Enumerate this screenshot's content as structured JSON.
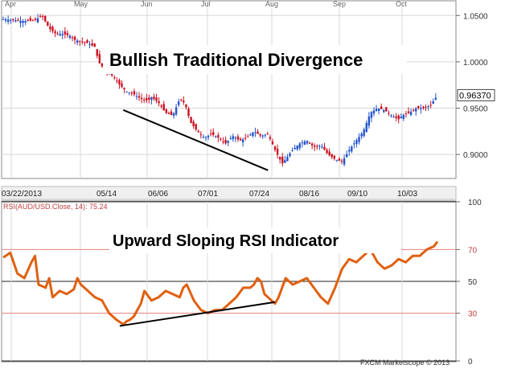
{
  "chart_data": [
    {
      "type": "candlestick",
      "annotation": "Bullish Traditional Divergence",
      "ylim": [
        0.875,
        1.065
      ],
      "yticks": [
        1.05,
        1.0,
        0.95,
        0.9
      ],
      "ytick_labels": [
        "1.0500",
        "1.0000",
        "0.9500",
        "0.9000"
      ],
      "month_labels": [
        "Apr",
        "May",
        "Jun",
        "Jul",
        "Aug",
        "Sep",
        "Oct"
      ],
      "date_labels": [
        "03/22/2013",
        "05/14",
        "06/06",
        "07/01",
        "07/24",
        "08/16",
        "09/10",
        "10/03"
      ],
      "last_price": "0.96370",
      "close_path": [
        [
          0,
          1.046
        ],
        [
          6,
          1.045
        ],
        [
          12,
          1.044
        ],
        [
          18,
          1.045
        ],
        [
          22,
          1.05
        ],
        [
          26,
          1.036
        ],
        [
          30,
          1.03
        ],
        [
          34,
          1.03
        ],
        [
          38,
          1.028
        ],
        [
          40,
          1.024
        ],
        [
          44,
          1.022
        ],
        [
          48,
          1.02
        ],
        [
          52,
          1.016
        ],
        [
          54,
          1.0
        ],
        [
          58,
          0.99
        ],
        [
          62,
          0.985
        ],
        [
          66,
          0.975
        ],
        [
          70,
          0.968
        ],
        [
          74,
          0.965
        ],
        [
          78,
          0.96
        ],
        [
          82,
          0.958
        ],
        [
          84,
          0.962
        ],
        [
          88,
          0.956
        ],
        [
          92,
          0.945
        ],
        [
          96,
          0.942
        ],
        [
          100,
          0.96
        ],
        [
          103,
          0.955
        ],
        [
          106,
          0.935
        ],
        [
          110,
          0.925
        ],
        [
          114,
          0.918
        ],
        [
          118,
          0.922
        ],
        [
          122,
          0.918
        ],
        [
          126,
          0.912
        ],
        [
          130,
          0.92
        ],
        [
          134,
          0.915
        ],
        [
          138,
          0.918
        ],
        [
          142,
          0.925
        ],
        [
          146,
          0.92
        ],
        [
          150,
          0.922
        ],
        [
          154,
          0.905
        ],
        [
          158,
          0.89
        ],
        [
          160,
          0.895
        ],
        [
          164,
          0.905
        ],
        [
          168,
          0.912
        ],
        [
          172,
          0.915
        ],
        [
          176,
          0.908
        ],
        [
          180,
          0.91
        ],
        [
          184,
          0.9
        ],
        [
          188,
          0.895
        ],
        [
          192,
          0.892
        ],
        [
          196,
          0.905
        ],
        [
          200,
          0.915
        ],
        [
          204,
          0.925
        ],
        [
          208,
          0.945
        ],
        [
          212,
          0.95
        ],
        [
          216,
          0.948
        ],
        [
          220,
          0.942
        ],
        [
          224,
          0.938
        ],
        [
          226,
          0.942
        ],
        [
          230,
          0.945
        ],
        [
          234,
          0.95
        ],
        [
          238,
          0.95
        ],
        [
          242,
          0.953
        ],
        [
          246,
          0.964
        ]
      ],
      "divergence_line": [
        [
          68,
          0.948
        ],
        [
          150,
          0.883
        ]
      ]
    },
    {
      "type": "line",
      "title": "RSI(AUD/USD.Close, 14): 75.24",
      "annotation": "Upward Sloping RSI Indicator",
      "ylim": [
        0,
        100
      ],
      "yticks": [
        100,
        70,
        50,
        30,
        0
      ],
      "ytick_labels": [
        "100",
        "70",
        "50",
        "30",
        "0"
      ],
      "levels": [
        70,
        30
      ],
      "x": [
        0,
        4,
        8,
        12,
        16,
        18,
        20,
        24,
        26,
        28,
        32,
        36,
        40,
        42,
        44,
        48,
        52,
        56,
        60,
        64,
        68,
        70,
        72,
        74,
        76,
        78,
        80,
        84,
        88,
        92,
        96,
        100,
        102,
        104,
        108,
        112,
        116,
        120,
        124,
        128,
        132,
        136,
        140,
        142,
        144,
        146,
        148,
        150,
        152,
        154,
        156,
        160,
        164,
        168,
        172,
        176,
        180,
        184,
        188,
        192,
        196,
        200,
        204,
        208,
        212,
        216,
        220,
        224,
        228,
        232,
        236,
        240,
        244,
        246
      ],
      "values": [
        65,
        68,
        55,
        52,
        62,
        66,
        48,
        46,
        52,
        40,
        44,
        42,
        45,
        52,
        48,
        44,
        40,
        38,
        30,
        26,
        23,
        25,
        26,
        28,
        32,
        36,
        44,
        38,
        40,
        44,
        42,
        40,
        46,
        48,
        38,
        32,
        30,
        32,
        32,
        36,
        40,
        46,
        46,
        48,
        52,
        50,
        42,
        40,
        38,
        36,
        40,
        52,
        48,
        50,
        52,
        46,
        40,
        36,
        46,
        58,
        64,
        62,
        66,
        70,
        62,
        58,
        60,
        64,
        62,
        66,
        66,
        70,
        72,
        75
      ],
      "divergence_line": [
        [
          66,
          22
        ],
        [
          154,
          37
        ]
      ]
    }
  ],
  "footer": {
    "credit": "FXCM Marketscope © 2013"
  },
  "colors": {
    "bull": "#2255cc",
    "bear": "#cc1122",
    "rsi": "#e06010",
    "level_line": "#e88080",
    "grid": "#d8d8d8",
    "frame": "#888888",
    "price_box": "#ffffff",
    "banner_bg": "#ffffff"
  }
}
